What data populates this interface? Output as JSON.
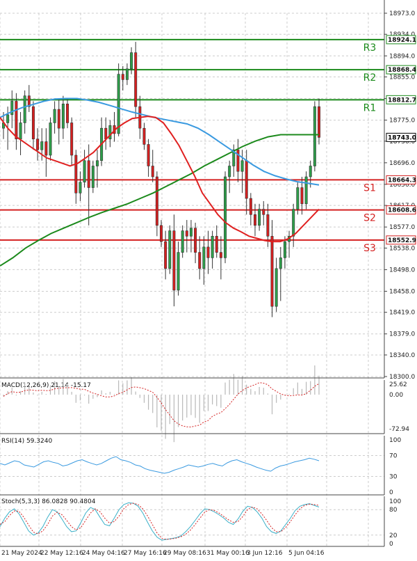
{
  "chart_data": {
    "type": "candlestick",
    "price_axis": {
      "ylim": [
        18300.0,
        18973.0
      ],
      "ticks": [
        "18973.0",
        "18934.0",
        "18894.0",
        "18855.0",
        "18815.0",
        "18775.0",
        "18736.0",
        "18696.0",
        "18656.0",
        "18617.0",
        "18577.0",
        "18538.0",
        "18498.0",
        "18458.0",
        "18419.0",
        "18379.0",
        "18340.0",
        "18300.0"
      ]
    },
    "time_axis": {
      "labels": [
        "21 May 2024",
        "22 May 12:16",
        "24 May 04:16",
        "27 May 16:16",
        "29 May 08:16",
        "31 May 00:16",
        "3 Jun 12:16",
        "5 Jun 04:16"
      ]
    },
    "colors": {
      "up_body": "#2e9e4a",
      "down_body": "#d42020",
      "resistance": "#1a8a1a",
      "support": "#d42020",
      "sma_fast": "#e02020",
      "sma_mid": "#3a9ae0",
      "sma_slow": "#1c8a1c",
      "current_price": "#000000",
      "grid": "#cccccc"
    },
    "levels": [
      {
        "name": "R3",
        "price": 18924.1,
        "label": "18924.1",
        "kind": "resistance"
      },
      {
        "name": "R2",
        "price": 18868.4,
        "label": "18868.4",
        "kind": "resistance"
      },
      {
        "name": "R1",
        "price": 18812.7,
        "label": "18812.7",
        "kind": "resistance"
      },
      {
        "name": "S1",
        "price": 18664.3,
        "label": "18664.3",
        "kind": "support"
      },
      {
        "name": "S2",
        "price": 18608.6,
        "label": "18608.6",
        "kind": "support"
      },
      {
        "name": "S3",
        "price": 18552.9,
        "label": "18552.9",
        "kind": "support"
      }
    ],
    "current_price": {
      "value": 18743.0,
      "label": "18743.0"
    },
    "candles": [
      [
        18760,
        18790,
        18740,
        18770
      ],
      [
        18770,
        18800,
        18720,
        18785
      ],
      [
        18785,
        18830,
        18760,
        18810
      ],
      [
        18810,
        18825,
        18720,
        18740
      ],
      [
        18740,
        18790,
        18710,
        18770
      ],
      [
        18770,
        18830,
        18750,
        18820
      ],
      [
        18820,
        18840,
        18790,
        18800
      ],
      [
        18800,
        18810,
        18720,
        18740
      ],
      [
        18740,
        18760,
        18700,
        18720
      ],
      [
        18720,
        18760,
        18700,
        18735
      ],
      [
        18735,
        18760,
        18670,
        18710
      ],
      [
        18710,
        18780,
        18700,
        18770
      ],
      [
        18770,
        18810,
        18750,
        18795
      ],
      [
        18795,
        18815,
        18730,
        18760
      ],
      [
        18760,
        18820,
        18740,
        18805
      ],
      [
        18805,
        18815,
        18760,
        18770
      ],
      [
        18770,
        18780,
        18690,
        18710
      ],
      [
        18710,
        18720,
        18620,
        18640
      ],
      [
        18640,
        18680,
        18625,
        18660
      ],
      [
        18660,
        18720,
        18650,
        18700
      ],
      [
        18700,
        18730,
        18580,
        18650
      ],
      [
        18650,
        18700,
        18640,
        18690
      ],
      [
        18690,
        18720,
        18650,
        18700
      ],
      [
        18700,
        18780,
        18690,
        18760
      ],
      [
        18760,
        18780,
        18720,
        18740
      ],
      [
        18740,
        18775,
        18725,
        18765
      ],
      [
        18765,
        18790,
        18735,
        18750
      ],
      [
        18750,
        18880,
        18745,
        18860
      ],
      [
        18860,
        18875,
        18830,
        18850
      ],
      [
        18850,
        18880,
        18840,
        18870
      ],
      [
        18870,
        18910,
        18860,
        18900
      ],
      [
        18900,
        18920,
        18780,
        18800
      ],
      [
        18800,
        18820,
        18740,
        18760
      ],
      [
        18760,
        18770,
        18720,
        18730
      ],
      [
        18730,
        18740,
        18670,
        18690
      ],
      [
        18690,
        18720,
        18660,
        18670
      ],
      [
        18670,
        18680,
        18560,
        18580
      ],
      [
        18580,
        18590,
        18540,
        18550
      ],
      [
        18550,
        18570,
        18480,
        18500
      ],
      [
        18500,
        18580,
        18490,
        18570
      ],
      [
        18570,
        18600,
        18430,
        18460
      ],
      [
        18460,
        18550,
        18450,
        18530
      ],
      [
        18530,
        18580,
        18520,
        18570
      ],
      [
        18570,
        18590,
        18530,
        18560
      ],
      [
        18560,
        18590,
        18530,
        18575
      ],
      [
        18575,
        18585,
        18510,
        18530
      ],
      [
        18530,
        18560,
        18480,
        18500
      ],
      [
        18500,
        18560,
        18470,
        18540
      ],
      [
        18540,
        18570,
        18490,
        18520
      ],
      [
        18520,
        18570,
        18500,
        18560
      ],
      [
        18560,
        18580,
        18520,
        18530
      ],
      [
        18530,
        18560,
        18480,
        18520
      ],
      [
        18520,
        18680,
        18510,
        18670
      ],
      [
        18670,
        18700,
        18640,
        18690
      ],
      [
        18690,
        18730,
        18670,
        18720
      ],
      [
        18720,
        18740,
        18660,
        18680
      ],
      [
        18680,
        18720,
        18640,
        18700
      ],
      [
        18700,
        18720,
        18600,
        18630
      ],
      [
        18630,
        18640,
        18580,
        18600
      ],
      [
        18600,
        18620,
        18560,
        18580
      ],
      [
        18580,
        18620,
        18570,
        18610
      ],
      [
        18610,
        18625,
        18580,
        18600
      ],
      [
        18600,
        18620,
        18540,
        18560
      ],
      [
        18560,
        18590,
        18410,
        18430
      ],
      [
        18430,
        18520,
        18420,
        18500
      ],
      [
        18500,
        18540,
        18440,
        18520
      ],
      [
        18520,
        18560,
        18500,
        18550
      ],
      [
        18550,
        18570,
        18520,
        18560
      ],
      [
        18560,
        18620,
        18540,
        18610
      ],
      [
        18610,
        18660,
        18600,
        18650
      ],
      [
        18650,
        18670,
        18600,
        18620
      ],
      [
        18620,
        18680,
        18610,
        18670
      ],
      [
        18670,
        18700,
        18650,
        18690
      ],
      [
        18690,
        18810,
        18680,
        18800
      ],
      [
        18800,
        18815,
        18730,
        18743
      ]
    ],
    "sma_fast": [
      18780,
      18760,
      18745,
      18735,
      18725,
      18715,
      18705,
      18700,
      18695,
      18690,
      18695,
      18705,
      18715,
      18730,
      18745,
      18760,
      18770,
      18778,
      18780,
      18782,
      18780,
      18770,
      18750,
      18728,
      18700,
      18672,
      18640,
      18620,
      18600,
      18585,
      18575,
      18568,
      18560,
      18556,
      18552,
      18550,
      18550,
      18555,
      18565,
      18580,
      18595,
      18610
    ],
    "sma_mid": [
      18780,
      18790,
      18798,
      18804,
      18810,
      18814,
      18815,
      18815,
      18812,
      18808,
      18802,
      18796,
      18790,
      18785,
      18780,
      18776,
      18772,
      18768,
      18760,
      18748,
      18734,
      18720,
      18706,
      18692,
      18680,
      18672,
      18666,
      18661,
      18658,
      18655
    ],
    "sma_slow": [
      18505,
      18520,
      18538,
      18552,
      18565,
      18575,
      18585,
      18595,
      18604,
      18612,
      18620,
      18630,
      18640,
      18652,
      18664,
      18676,
      18690,
      18702,
      18714,
      18726,
      18736,
      18744,
      18748,
      18748,
      18748,
      18748
    ],
    "macd": {
      "title": "MACD(12,26,9) 21.14 -15.17",
      "ylim": [
        -72.94,
        25.62
      ],
      "ticks": [
        "25.62",
        "0.00",
        "-72.94"
      ]
    },
    "rsi": {
      "title": "RSI(14) 59.3240",
      "ylim": [
        0,
        100
      ],
      "ticks": [
        "100",
        "70",
        "30",
        "0"
      ],
      "values": [
        55,
        52,
        56,
        60,
        58,
        52,
        50,
        48,
        53,
        58,
        60,
        57,
        55,
        50,
        52,
        56,
        60,
        62,
        58,
        55,
        52,
        55,
        60,
        65,
        68,
        62,
        60,
        57,
        52,
        50,
        45,
        42,
        40,
        38,
        36,
        38,
        42,
        45,
        48,
        52,
        50,
        48,
        50,
        53,
        55,
        52,
        50,
        56,
        60,
        62,
        58,
        55,
        52,
        48,
        45,
        42,
        40,
        46,
        50,
        52,
        55,
        58,
        60,
        62,
        65,
        63,
        60
      ],
      "color": "#3a9ae0"
    },
    "stoch": {
      "title": "Stoch(5,3,3) 86.0828 90.4804",
      "ylim": [
        0,
        100
      ],
      "ticks": [
        "100",
        "80",
        "20",
        "0"
      ],
      "k_values": [
        40,
        60,
        75,
        82,
        70,
        50,
        30,
        20,
        25,
        40,
        62,
        80,
        75,
        58,
        40,
        28,
        30,
        50,
        72,
        85,
        80,
        62,
        45,
        42,
        60,
        80,
        92,
        96,
        95,
        88,
        72,
        50,
        30,
        15,
        8,
        10,
        12,
        14,
        18,
        28,
        40,
        55,
        70,
        82,
        80,
        75,
        68,
        60,
        50,
        45,
        58,
        76,
        88,
        85,
        75,
        60,
        40,
        28,
        24,
        30,
        45,
        60,
        78,
        88,
        92,
        94,
        90,
        86
      ],
      "d_values": [
        45,
        52,
        66,
        77,
        76,
        62,
        44,
        27,
        23,
        30,
        45,
        65,
        74,
        68,
        55,
        40,
        32,
        38,
        55,
        72,
        82,
        75,
        60,
        48,
        52,
        65,
        82,
        92,
        95,
        92,
        82,
        65,
        45,
        25,
        12,
        10,
        11,
        13,
        16,
        22,
        32,
        45,
        60,
        74,
        80,
        78,
        72,
        64,
        56,
        50,
        52,
        64,
        80,
        86,
        82,
        70,
        55,
        38,
        28,
        28,
        38,
        52,
        68,
        82,
        90,
        93,
        92,
        90
      ],
      "k_color": "#3ab0c8",
      "d_color": "#d42020"
    }
  }
}
